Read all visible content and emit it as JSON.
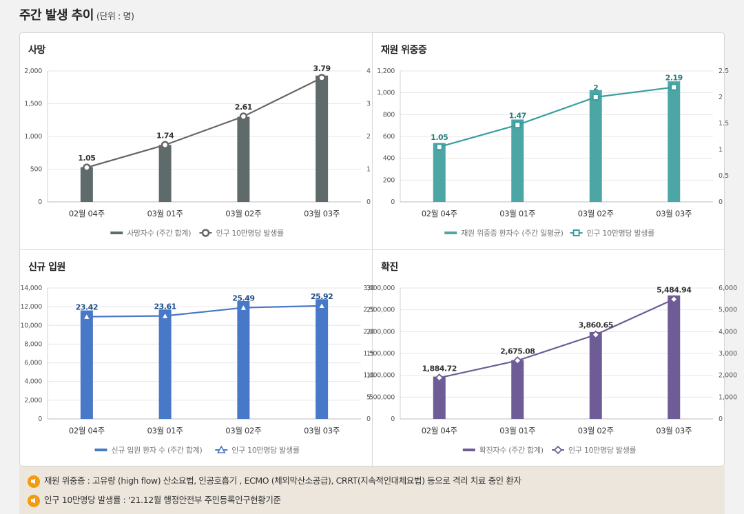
{
  "header": {
    "title": "주간 발생 추이",
    "unit": "(단위 : 명)"
  },
  "notes": [
    "재원 위중증 : 고유량 (high flow) 산소요법, 인공호흡기 , ECMO (체외막산소공급), CRRT(지속적인대체요법) 등으로 격리 치료 중인 환자",
    "인구 10만명당 발생률 : '21.12월 행정안전부 주민등록인구현황기준"
  ],
  "chart_data": [
    {
      "id": "deaths",
      "type": "bar+line",
      "title": "사망",
      "categories": [
        "02월 04주",
        "03월 01주",
        "03월 02주",
        "03월 03주"
      ],
      "bar_values": [
        530,
        870,
        1300,
        1930
      ],
      "bar_axis": {
        "min": 0,
        "max": 2000,
        "ticks": [
          "0",
          "500",
          "1,000",
          "1,500",
          "2,000"
        ],
        "step": 500
      },
      "line_values": [
        1.05,
        1.74,
        2.61,
        3.79
      ],
      "line_labels": [
        "1.05",
        "1.74",
        "2.61",
        "3.79"
      ],
      "line_axis": {
        "min": 0,
        "max": 4,
        "ticks": [
          "0",
          "1",
          "2",
          "3",
          "4"
        ],
        "step": 1
      },
      "legend": [
        "사망자수 (주간 합계)",
        "인구 10만명당 발생률"
      ],
      "bar_color": "#5f6b6b",
      "line_color": "#666666",
      "label_color": "#333333",
      "marker": "circle"
    },
    {
      "id": "critical",
      "type": "bar+line",
      "title": "재원 위중증",
      "categories": [
        "02월 04주",
        "03월 01주",
        "03월 02주",
        "03월 03주"
      ],
      "bar_values": [
        540,
        755,
        1025,
        1105
      ],
      "bar_axis": {
        "min": 0,
        "max": 1200,
        "ticks": [
          "0",
          "200",
          "400",
          "600",
          "800",
          "1,000",
          "1,200"
        ],
        "step": 200
      },
      "line_values": [
        1.05,
        1.47,
        2,
        2.19
      ],
      "line_labels": [
        "1.05",
        "1.47",
        "2",
        "2.19"
      ],
      "line_axis": {
        "min": 0,
        "max": 2.5,
        "ticks": [
          "0",
          "0.5",
          "1",
          "1.5",
          "2",
          "2.5"
        ],
        "step": 0.5
      },
      "legend": [
        "재원 위중증 환자수 (주간 일평균)",
        "인구 10만명당 발생률"
      ],
      "bar_color": "#4da6a6",
      "line_color": "#3a9e9e",
      "label_color": "#2a7f7f",
      "marker": "square"
    },
    {
      "id": "admissions",
      "type": "bar+line",
      "title": "신규 입원",
      "categories": [
        "02월 04주",
        "03월 01주",
        "03월 02주",
        "03월 03주"
      ],
      "bar_values": [
        11600,
        11700,
        12600,
        12800
      ],
      "bar_axis": {
        "min": 0,
        "max": 14000,
        "ticks": [
          "0",
          "2,000",
          "4,000",
          "6,000",
          "8,000",
          "10,000",
          "12,000",
          "14,000"
        ],
        "step": 2000
      },
      "line_values": [
        23.42,
        23.61,
        25.49,
        25.92
      ],
      "line_labels": [
        "23.42",
        "23.61",
        "25.49",
        "25.92"
      ],
      "line_axis": {
        "min": 0,
        "max": 30,
        "ticks": [
          "0",
          "5",
          "10",
          "15",
          "20",
          "25",
          "30"
        ],
        "step": 5
      },
      "legend": [
        "신규 입원 환자 수 (주간 합계)",
        "인구 10만명당 발생률"
      ],
      "bar_color": "#4878c8",
      "line_color": "#4878c8",
      "label_color": "#1f4e8c",
      "marker": "triangle"
    },
    {
      "id": "confirmed",
      "type": "bar+line",
      "title": "확진",
      "categories": [
        "02월 04주",
        "03월 01주",
        "03월 02주",
        "03월 03주"
      ],
      "bar_values": [
        970000,
        1350000,
        1990000,
        2830000
      ],
      "bar_axis": {
        "min": 0,
        "max": 3000000,
        "ticks": [
          "0",
          "500,000",
          "1,000,000",
          "1,500,000",
          "2,000,000",
          "2,500,000",
          "3,000,000"
        ],
        "step": 500000
      },
      "line_values": [
        1884.72,
        2675.08,
        3860.65,
        5484.94
      ],
      "line_labels": [
        "1,884.72",
        "2,675.08",
        "3,860.65",
        "5,484.94"
      ],
      "line_axis": {
        "min": 0,
        "max": 6000,
        "ticks": [
          "0",
          "1,000",
          "2,000",
          "3,000",
          "4,000",
          "5,000",
          "6,000"
        ],
        "step": 1000
      },
      "legend": [
        "확진자수 (주간 합계)",
        "인구 10만명당 발생률"
      ],
      "bar_color": "#6e5c96",
      "line_color": "#6e5c96",
      "label_color": "#333333",
      "marker": "diamond"
    }
  ]
}
